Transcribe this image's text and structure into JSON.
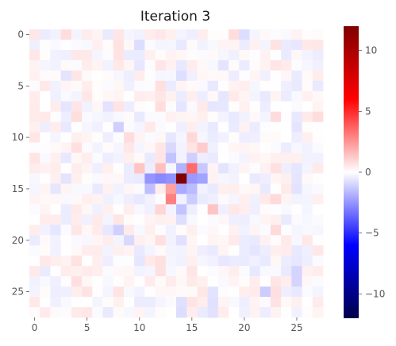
{
  "chart_data": {
    "type": "heatmap",
    "title": "Iteration 3",
    "xlabel": "",
    "ylabel": "",
    "rows": 28,
    "cols": 28,
    "x_ticks": [
      0,
      5,
      10,
      15,
      20,
      25
    ],
    "y_ticks": [
      0,
      5,
      10,
      15,
      20,
      25
    ],
    "colormap": "seismic",
    "vmin": -12,
    "vmax": 12,
    "colorbar_ticks": [
      10,
      5,
      0,
      -5,
      -10
    ],
    "colorbar_colors": {
      "min": "#00004c",
      "low": "#0000ff",
      "mid": "#ffffff",
      "high": "#ff0000",
      "max": "#800000"
    },
    "peak": {
      "row": 14,
      "col": 14,
      "value": 12
    },
    "grid": false,
    "notable_cells": [
      {
        "row": 13,
        "col": 15,
        "value": 3.5
      },
      {
        "row": 16,
        "col": 13,
        "value": 3.0
      },
      {
        "row": 15,
        "col": 13,
        "value": 2.2
      },
      {
        "row": 13,
        "col": 12,
        "value": 1.5
      },
      {
        "row": 14,
        "col": 11,
        "value": -2.5
      },
      {
        "row": 14,
        "col": 12,
        "value": -2.8
      },
      {
        "row": 14,
        "col": 13,
        "value": -2.6
      },
      {
        "row": 14,
        "col": 15,
        "value": -2.4
      },
      {
        "row": 14,
        "col": 16,
        "value": -2.2
      },
      {
        "row": 15,
        "col": 14,
        "value": -2.0
      },
      {
        "row": 13,
        "col": 14,
        "value": -1.8
      },
      {
        "row": 15,
        "col": 15,
        "value": -1.6
      },
      {
        "row": 12,
        "col": 13,
        "value": -1.4
      },
      {
        "row": 15,
        "col": 11,
        "value": -1.5
      },
      {
        "row": 17,
        "col": 14,
        "value": -1.4
      },
      {
        "row": 16,
        "col": 15,
        "value": -1.2
      },
      {
        "row": 13,
        "col": 16,
        "value": -1.3
      },
      {
        "row": 12,
        "col": 15,
        "value": -1.1
      },
      {
        "row": 11,
        "col": 13,
        "value": -0.9
      },
      {
        "row": 13,
        "col": 10,
        "value": 1.4
      },
      {
        "row": 17,
        "col": 17,
        "value": 1.4
      },
      {
        "row": 11,
        "col": 16,
        "value": 1.2
      },
      {
        "row": 17,
        "col": 12,
        "value": 1.0
      },
      {
        "row": 10,
        "col": 15,
        "value": 0.9
      },
      {
        "row": 9,
        "col": 8,
        "value": -1.1
      },
      {
        "row": 19,
        "col": 8,
        "value": -1.1
      },
      {
        "row": 20,
        "col": 9,
        "value": -0.9
      },
      {
        "row": 25,
        "col": 22,
        "value": -1.2
      },
      {
        "row": 23,
        "col": 25,
        "value": -1.0
      },
      {
        "row": 24,
        "col": 25,
        "value": -1.0
      },
      {
        "row": 0,
        "col": 20,
        "value": -0.8
      },
      {
        "row": 1,
        "col": 10,
        "value": -0.8
      },
      {
        "row": 0,
        "col": 3,
        "value": 0.8
      },
      {
        "row": 0,
        "col": 19,
        "value": 0.8
      },
      {
        "row": 8,
        "col": 27,
        "value": 0.8
      },
      {
        "row": 10,
        "col": 9,
        "value": 0.8
      }
    ]
  }
}
